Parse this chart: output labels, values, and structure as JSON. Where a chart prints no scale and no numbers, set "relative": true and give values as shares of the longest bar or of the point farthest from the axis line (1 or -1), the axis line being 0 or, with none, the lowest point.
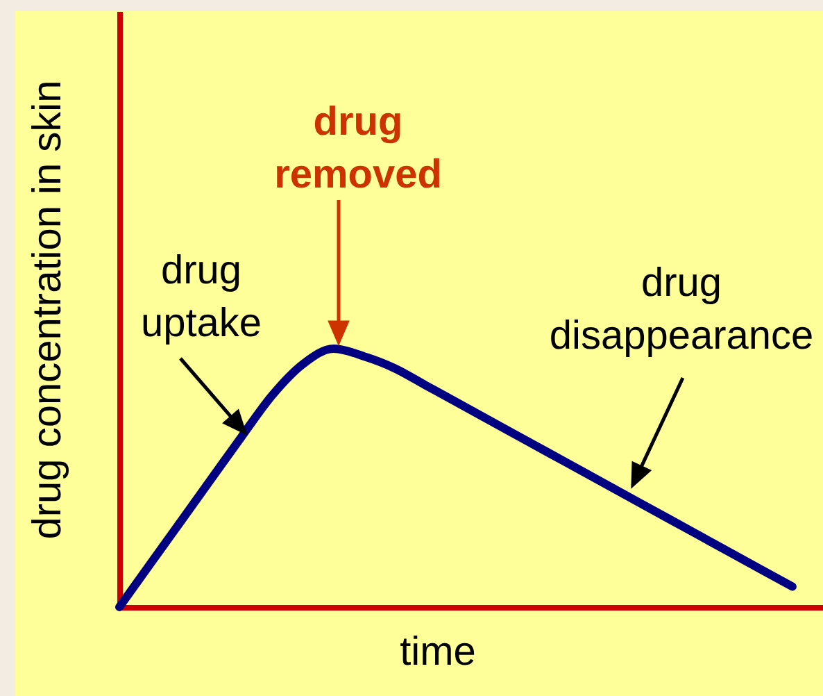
{
  "chart_data": {
    "type": "line",
    "xlabel": "time",
    "ylabel": "drug concentration in skin",
    "categories": [
      null,
      null,
      null,
      null,
      null,
      null,
      null,
      null,
      null,
      null,
      null,
      null,
      null,
      null,
      null,
      null,
      null,
      null,
      null,
      null,
      null,
      null,
      null
    ],
    "values": [
      0,
      0.165,
      0.33,
      0.495,
      0.66,
      0.82,
      0.94,
      1,
      0.97,
      0.924,
      0.859,
      0.794,
      0.729,
      0.664,
      0.599,
      0.534,
      0.469,
      0.404,
      0.339,
      0.274,
      0.209,
      0.144,
      0.079
    ],
    "color": "#000080",
    "relative": true,
    "annotations": [
      "drug uptake",
      "drug removed",
      "drug disappearance"
    ]
  }
}
